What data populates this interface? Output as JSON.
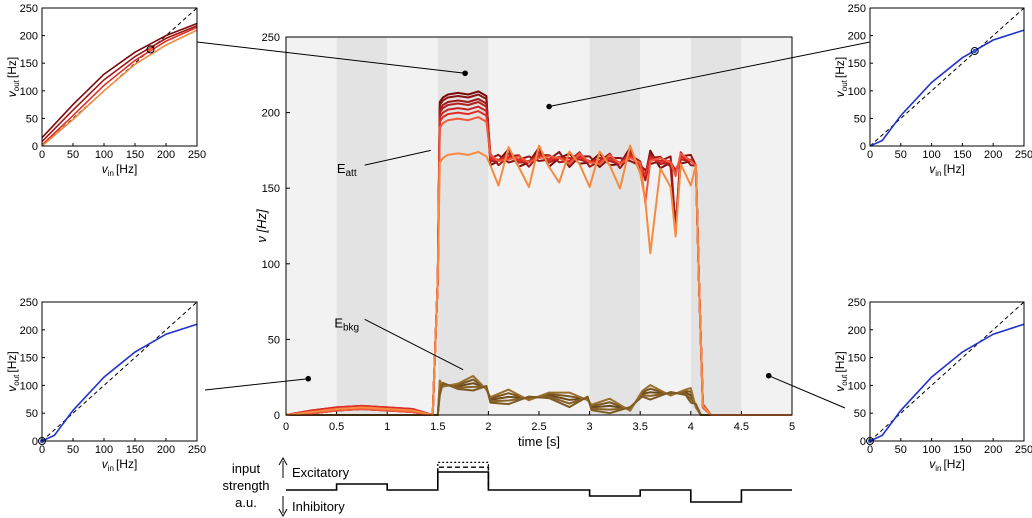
{
  "chart_data": [
    {
      "id": "main",
      "type": "line",
      "xlabel": "time [s]",
      "ylabel": "ν [Hz]",
      "xlim": [
        0,
        5
      ],
      "ylim": [
        0,
        250
      ],
      "xticks": [
        "0",
        "0.5",
        "1",
        "1.5",
        "2",
        "2.5",
        "3",
        "3.5",
        "4",
        "4.5",
        "5"
      ],
      "yticks": [
        "0",
        "50",
        "100",
        "150",
        "200",
        "250"
      ],
      "grid": false,
      "background_bands": [
        {
          "x": [
            0.0,
            0.5
          ],
          "shade": "light"
        },
        {
          "x": [
            0.5,
            1.0
          ],
          "shade": "dark"
        },
        {
          "x": [
            1.0,
            1.5
          ],
          "shade": "light"
        },
        {
          "x": [
            1.5,
            2.0
          ],
          "shade": "dark"
        },
        {
          "x": [
            2.0,
            3.0
          ],
          "shade": "light"
        },
        {
          "x": [
            3.0,
            3.5
          ],
          "shade": "dark"
        },
        {
          "x": [
            3.5,
            4.0
          ],
          "shade": "light"
        },
        {
          "x": [
            4.0,
            4.5
          ],
          "shade": "dark"
        },
        {
          "x": [
            4.5,
            5.0
          ],
          "shade": "light"
        }
      ],
      "band_colors": {
        "light": "#f2f2f2",
        "dark": "#e3e3e3"
      },
      "annotations": [
        {
          "base": "E",
          "sub": "att",
          "x": 0.6,
          "y": 160,
          "pointer": [
            1.43,
            175
          ]
        },
        {
          "base": "E",
          "sub": "bkg",
          "x": 0.6,
          "y": 58,
          "pointer": [
            1.75,
            30
          ]
        }
      ],
      "series_att": {
        "colors": [
          "#7a0a0a",
          "#8b1515",
          "#a01818",
          "#b51f1f",
          "#c92424",
          "#df2e26",
          "#f05a3c",
          "#f58a40"
        ],
        "x": [
          0,
          0.25,
          0.5,
          0.75,
          1.0,
          1.25,
          1.45,
          1.5,
          1.52,
          1.55,
          1.6,
          1.7,
          1.8,
          1.9,
          1.98,
          2.02,
          2.1,
          2.2,
          2.3,
          2.4,
          2.5,
          2.6,
          2.7,
          2.8,
          2.9,
          3.0,
          3.1,
          3.2,
          3.3,
          3.4,
          3.5,
          3.55,
          3.6,
          3.7,
          3.8,
          3.85,
          3.9,
          4.0,
          4.05,
          4.08,
          4.12,
          4.2,
          4.5,
          4.75,
          5.0
        ],
        "offsets": [
          12,
          10,
          7,
          5,
          2,
          -1,
          -5,
          -28
        ],
        "y": [
          0,
          1,
          3,
          4,
          3,
          2,
          0,
          90,
          195,
          198,
          200,
          201,
          200,
          202,
          199,
          170,
          168,
          171,
          169,
          167,
          172,
          169,
          170,
          168,
          171,
          167,
          168,
          170,
          166,
          172,
          165,
          158,
          170,
          168,
          167,
          160,
          171,
          168,
          165,
          90,
          5,
          0,
          0,
          0,
          0
        ]
      },
      "series_bkg": {
        "colors": [
          "#6b4a1c",
          "#7a5520",
          "#8a6226",
          "#9a6e2c",
          "#7e5a24"
        ],
        "offsets": [
          0,
          3,
          -3,
          6,
          -6
        ],
        "x": [
          0,
          1.5,
          1.52,
          1.55,
          1.7,
          1.85,
          1.98,
          2.02,
          2.2,
          2.4,
          2.6,
          2.8,
          2.98,
          3.02,
          3.2,
          3.4,
          3.52,
          3.6,
          3.8,
          3.95,
          4.0,
          4.05,
          4.1,
          5.0
        ],
        "y": [
          0,
          0,
          18,
          20,
          19,
          21,
          18,
          10,
          12,
          11,
          13,
          10,
          11,
          5,
          6,
          4,
          14,
          15,
          14,
          15,
          13,
          6,
          0,
          0
        ]
      }
    },
    {
      "id": "inset-top-left",
      "type": "line",
      "xlabel_base": "v",
      "xlabel_sub": "in",
      "xlabel_unit": "[Hz]",
      "ylabel_base": "v",
      "ylabel_sub": "out",
      "ylabel_unit": "[Hz]",
      "xlim": [
        0,
        250
      ],
      "ylim": [
        0,
        250
      ],
      "xticks": [
        "0",
        "50",
        "100",
        "150",
        "200",
        "250"
      ],
      "yticks": [
        "0",
        "50",
        "100",
        "150",
        "200",
        "250"
      ],
      "marker": [
        175,
        175
      ],
      "marker_color": "#f05a3c",
      "series": [
        {
          "color": "#7a0a0a",
          "x": [
            0,
            50,
            100,
            150,
            200,
            250
          ],
          "y": [
            15,
            75,
            130,
            170,
            200,
            222
          ]
        },
        {
          "color": "#a01818",
          "x": [
            0,
            50,
            100,
            150,
            200,
            250
          ],
          "y": [
            8,
            65,
            120,
            162,
            195,
            218
          ]
        },
        {
          "color": "#df2e26",
          "x": [
            0,
            50,
            100,
            150,
            200,
            250
          ],
          "y": [
            2,
            55,
            110,
            155,
            190,
            215
          ]
        },
        {
          "color": "#f58a40",
          "x": [
            0,
            50,
            100,
            150,
            200,
            250
          ],
          "y": [
            0,
            48,
            100,
            148,
            183,
            210
          ]
        }
      ]
    },
    {
      "id": "inset-top-right",
      "type": "line",
      "xlabel_base": "v",
      "xlabel_sub": "in",
      "xlabel_unit": "[Hz]",
      "ylabel_base": "v",
      "ylabel_sub": "out",
      "ylabel_unit": "[Hz]",
      "xlim": [
        0,
        250
      ],
      "ylim": [
        0,
        250
      ],
      "xticks": [
        "0",
        "50",
        "100",
        "150",
        "200",
        "250"
      ],
      "yticks": [
        "0",
        "50",
        "100",
        "150",
        "200",
        "250"
      ],
      "marker": [
        170,
        172
      ],
      "marker_color": "#3355cc",
      "series": [
        {
          "color": "#2233cc",
          "x": [
            0,
            20,
            50,
            100,
            150,
            200,
            250
          ],
          "y": [
            0,
            10,
            55,
            115,
            160,
            192,
            210
          ]
        }
      ]
    },
    {
      "id": "inset-bottom-left",
      "type": "line",
      "xlabel_base": "v",
      "xlabel_sub": "in",
      "xlabel_unit": "[Hz]",
      "ylabel_base": "v",
      "ylabel_sub": "out",
      "ylabel_unit": "[Hz]",
      "xlim": [
        0,
        250
      ],
      "ylim": [
        0,
        250
      ],
      "xticks": [
        "0",
        "50",
        "100",
        "150",
        "200",
        "250"
      ],
      "yticks": [
        "0",
        "50",
        "100",
        "150",
        "200",
        "250"
      ],
      "marker": [
        0,
        0
      ],
      "marker_color": "#3355cc",
      "series": [
        {
          "color": "#2233cc",
          "x": [
            0,
            20,
            50,
            100,
            150,
            200,
            250
          ],
          "y": [
            0,
            10,
            55,
            115,
            160,
            192,
            210
          ]
        }
      ]
    },
    {
      "id": "inset-bottom-right",
      "type": "line",
      "xlabel_base": "v",
      "xlabel_sub": "in",
      "xlabel_unit": "[Hz]",
      "ylabel_base": "v",
      "ylabel_sub": "out",
      "ylabel_unit": "[Hz]",
      "xlim": [
        0,
        250
      ],
      "ylim": [
        0,
        250
      ],
      "xticks": [
        "0",
        "50",
        "100",
        "150",
        "200",
        "250"
      ],
      "yticks": [
        "0",
        "50",
        "100",
        "150",
        "200",
        "250"
      ],
      "marker": [
        0,
        0
      ],
      "marker_color": "#3355cc",
      "series": [
        {
          "color": "#2233cc",
          "x": [
            0,
            20,
            50,
            100,
            150,
            200,
            250
          ],
          "y": [
            0,
            10,
            55,
            115,
            160,
            192,
            210
          ]
        }
      ]
    }
  ],
  "input_strength": {
    "label_lines": [
      "input",
      "strength",
      "a.u."
    ],
    "excitatory": "Excitatory",
    "inhibitory": "Inhibitory",
    "times": [
      0.5,
      1.0,
      1.5,
      2.0,
      3.0,
      3.5,
      4.0,
      4.5,
      5.0
    ],
    "levels": [
      0,
      1,
      0,
      3,
      0,
      -1,
      0,
      -2,
      0
    ],
    "extra_levels_at_1_5": [
      3.8,
      4.6
    ]
  }
}
